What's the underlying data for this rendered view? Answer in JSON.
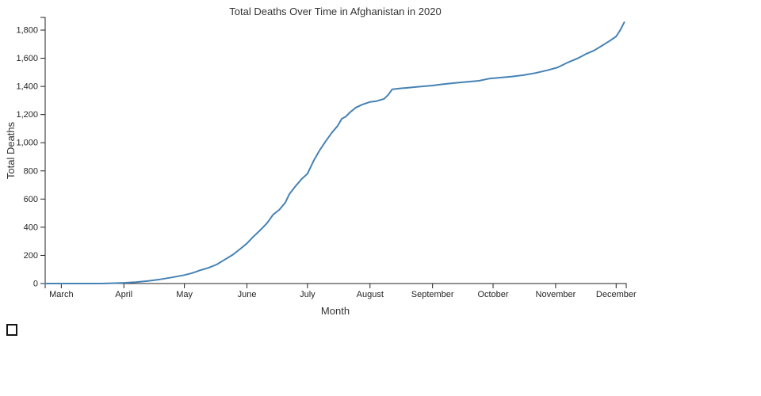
{
  "checkbox": {
    "checked": false
  },
  "chart_data": {
    "type": "line",
    "title": "Total Deaths Over Time in Afghanistan in 2020",
    "xlabel": "Month",
    "ylabel": "Total Deaths",
    "legend": "none",
    "grid": false,
    "colors": {
      "line": "#4682b4",
      "axis": "#222222",
      "tick_text": "#262626",
      "title_text": "#333333"
    },
    "x_range": [
      "2020-02-22",
      "2020-12-06"
    ],
    "ylim": [
      0,
      1890
    ],
    "y_ticks": [
      0,
      200,
      400,
      600,
      800,
      1000,
      1200,
      1400,
      1600,
      1800
    ],
    "x_ticks": [
      {
        "label": "March",
        "date": "2020-03-01"
      },
      {
        "label": "April",
        "date": "2020-04-01"
      },
      {
        "label": "May",
        "date": "2020-05-01"
      },
      {
        "label": "June",
        "date": "2020-06-01"
      },
      {
        "label": "July",
        "date": "2020-07-01"
      },
      {
        "label": "August",
        "date": "2020-08-01"
      },
      {
        "label": "September",
        "date": "2020-09-01"
      },
      {
        "label": "October",
        "date": "2020-10-01"
      },
      {
        "label": "November",
        "date": "2020-11-01"
      },
      {
        "label": "December",
        "date": "2020-12-01"
      }
    ],
    "series": [
      {
        "name": "Total Deaths",
        "points": [
          [
            "2020-02-22",
            0
          ],
          [
            "2020-03-01",
            0
          ],
          [
            "2020-03-10",
            0
          ],
          [
            "2020-03-20",
            0
          ],
          [
            "2020-03-26",
            2
          ],
          [
            "2020-04-01",
            5
          ],
          [
            "2020-04-07",
            10
          ],
          [
            "2020-04-13",
            18
          ],
          [
            "2020-04-19",
            30
          ],
          [
            "2020-04-25",
            44
          ],
          [
            "2020-05-01",
            60
          ],
          [
            "2020-05-05",
            75
          ],
          [
            "2020-05-09",
            95
          ],
          [
            "2020-05-13",
            112
          ],
          [
            "2020-05-17",
            135
          ],
          [
            "2020-05-21",
            170
          ],
          [
            "2020-05-25",
            205
          ],
          [
            "2020-05-29",
            250
          ],
          [
            "2020-06-01",
            285
          ],
          [
            "2020-06-04",
            330
          ],
          [
            "2020-06-08",
            385
          ],
          [
            "2020-06-11",
            430
          ],
          [
            "2020-06-14",
            490
          ],
          [
            "2020-06-17",
            523
          ],
          [
            "2020-06-20",
            575
          ],
          [
            "2020-06-22",
            635
          ],
          [
            "2020-06-25",
            690
          ],
          [
            "2020-06-28",
            740
          ],
          [
            "2020-07-01",
            780
          ],
          [
            "2020-07-04",
            870
          ],
          [
            "2020-07-07",
            945
          ],
          [
            "2020-07-10",
            1010
          ],
          [
            "2020-07-13",
            1070
          ],
          [
            "2020-07-16",
            1120
          ],
          [
            "2020-07-18",
            1170
          ],
          [
            "2020-07-20",
            1185
          ],
          [
            "2020-07-22",
            1215
          ],
          [
            "2020-07-25",
            1250
          ],
          [
            "2020-07-28",
            1270
          ],
          [
            "2020-08-01",
            1290
          ],
          [
            "2020-08-04",
            1295
          ],
          [
            "2020-08-08",
            1312
          ],
          [
            "2020-08-10",
            1340
          ],
          [
            "2020-08-12",
            1380
          ],
          [
            "2020-08-16",
            1386
          ],
          [
            "2020-08-20",
            1391
          ],
          [
            "2020-08-24",
            1396
          ],
          [
            "2020-08-28",
            1401
          ],
          [
            "2020-09-01",
            1406
          ],
          [
            "2020-09-06",
            1415
          ],
          [
            "2020-09-12",
            1424
          ],
          [
            "2020-09-18",
            1432
          ],
          [
            "2020-09-24",
            1440
          ],
          [
            "2020-09-29",
            1455
          ],
          [
            "2020-10-04",
            1462
          ],
          [
            "2020-10-10",
            1470
          ],
          [
            "2020-10-16",
            1480
          ],
          [
            "2020-10-22",
            1495
          ],
          [
            "2020-10-28",
            1515
          ],
          [
            "2020-11-02",
            1535
          ],
          [
            "2020-11-07",
            1570
          ],
          [
            "2020-11-12",
            1600
          ],
          [
            "2020-11-16",
            1630
          ],
          [
            "2020-11-20",
            1655
          ],
          [
            "2020-11-24",
            1690
          ],
          [
            "2020-11-28",
            1725
          ],
          [
            "2020-12-01",
            1755
          ],
          [
            "2020-12-03",
            1800
          ],
          [
            "2020-12-05",
            1855
          ]
        ]
      }
    ]
  }
}
